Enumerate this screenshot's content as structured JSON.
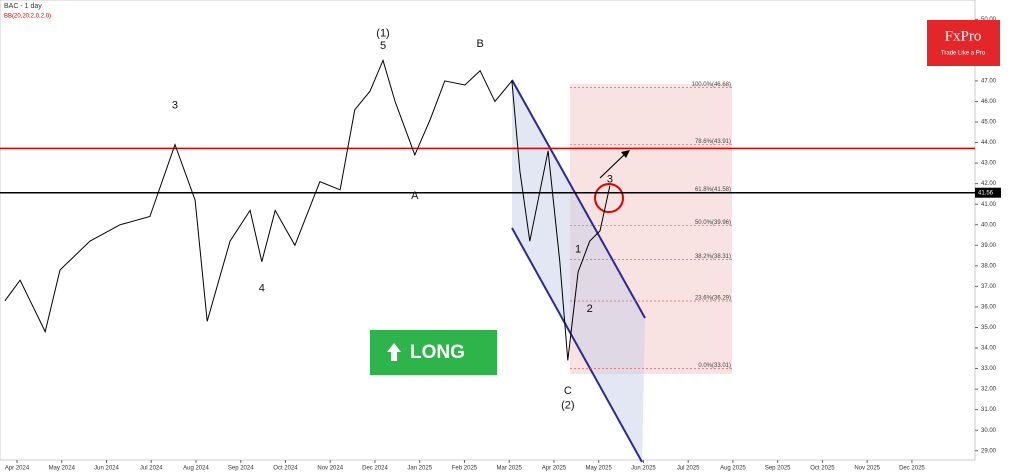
{
  "chart_data": {
    "type": "line",
    "title": "BAC - 1 day",
    "indicator": "BB(20,20,2,0,2.0)",
    "xlim": [
      -0.38,
      21.41
    ],
    "ylim": [
      28.55,
      50.55
    ],
    "xticks": [
      {
        "value": 0,
        "label": "Apr 2024"
      },
      {
        "value": 1,
        "label": "May 2024"
      },
      {
        "value": 2,
        "label": "Jun 2024"
      },
      {
        "value": 3,
        "label": "Jul 2024"
      },
      {
        "value": 4,
        "label": "Aug 2024"
      },
      {
        "value": 5,
        "label": "Sep 2024"
      },
      {
        "value": 6,
        "label": "Oct 2024"
      },
      {
        "value": 7,
        "label": "Nov 2024"
      },
      {
        "value": 8,
        "label": "Dec 2024"
      },
      {
        "value": 9,
        "label": "Jan 2025"
      },
      {
        "value": 10,
        "label": "Feb 2025"
      },
      {
        "value": 11,
        "label": "Mar 2025"
      },
      {
        "value": 12,
        "label": "Apr 2025"
      },
      {
        "value": 13,
        "label": "May 2025"
      },
      {
        "value": 14,
        "label": "Jun 2025"
      },
      {
        "value": 15,
        "label": "Jul 2025"
      },
      {
        "value": 16,
        "label": "Aug 2025"
      },
      {
        "value": 17,
        "label": "Sep 2025"
      },
      {
        "value": 18,
        "label": "Oct 2025"
      },
      {
        "value": 19,
        "label": "Nov 2025"
      },
      {
        "value": 20,
        "label": "Dec 2025"
      }
    ],
    "yticks": [
      {
        "value": 29,
        "label": "29.00"
      },
      {
        "value": 30,
        "label": "30.00"
      },
      {
        "value": 31,
        "label": "31.00"
      },
      {
        "value": 32,
        "label": "32.00"
      },
      {
        "value": 33,
        "label": "33.00"
      },
      {
        "value": 34,
        "label": "34.00"
      },
      {
        "value": 35,
        "label": "35.00"
      },
      {
        "value": 36,
        "label": "36.00"
      },
      {
        "value": 37,
        "label": "37.00"
      },
      {
        "value": 38,
        "label": "38.00"
      },
      {
        "value": 39,
        "label": "39.00"
      },
      {
        "value": 40,
        "label": "40.00"
      },
      {
        "value": 41,
        "label": "41.00"
      },
      {
        "value": 42,
        "label": "42.00"
      },
      {
        "value": 43,
        "label": "43.00"
      },
      {
        "value": 44,
        "label": "44.00"
      },
      {
        "value": 45,
        "label": "45.00"
      },
      {
        "value": 46,
        "label": "46.00"
      },
      {
        "value": 47,
        "label": "47.00"
      },
      {
        "value": 48,
        "label": "48.00"
      },
      {
        "value": 49,
        "label": "49.00"
      },
      {
        "value": 50,
        "label": "50.00"
      }
    ],
    "series": [
      {
        "color": "#000000",
        "x": [
          -0.27,
          0.07,
          0.63,
          0.96,
          1.63,
          2.3,
          2.97,
          3.53,
          3.98,
          4.25,
          4.76,
          5.21,
          5.47,
          5.77,
          6.21,
          6.77,
          7.22,
          7.55,
          7.89,
          8.18,
          8.45,
          8.89,
          9.23,
          9.56,
          10.01,
          10.35,
          10.68,
          11.06,
          11.24,
          11.46,
          11.87,
          12.13,
          12.31,
          12.54,
          12.8,
          13.03,
          13.25
        ],
        "values": [
          36.3,
          37.3,
          34.8,
          37.8,
          39.2,
          40.0,
          40.4,
          43.9,
          41.2,
          35.3,
          39.2,
          40.7,
          38.2,
          40.7,
          39.0,
          42.1,
          41.7,
          45.6,
          46.5,
          48.0,
          46.0,
          43.4,
          45.1,
          47.0,
          46.8,
          47.5,
          46.0,
          47.0,
          42.6,
          39.2,
          43.6,
          38.2,
          33.4,
          37.7,
          39.2,
          39.7,
          41.9
        ]
      }
    ],
    "levels": [
      {
        "value": 43.72,
        "color": "#e00000"
      },
      {
        "value": 41.56,
        "label": "41.56",
        "color": "#000000"
      }
    ],
    "fibonacci": [
      {
        "value": 46.68,
        "label": "100.0%(46.68)"
      },
      {
        "value": 43.91,
        "label": "78.6%(43.91)"
      },
      {
        "value": 41.58,
        "label": "61.8%(41.58)"
      },
      {
        "value": 39.96,
        "label": "50.0%(39.96)"
      },
      {
        "value": 38.31,
        "label": "38.2%(38.31)"
      },
      {
        "value": 36.29,
        "label": "23.6%(36.29)"
      },
      {
        "value": 33.01,
        "label": "0.0%(33.01)"
      }
    ],
    "annotations": [
      {
        "text": "(1)",
        "x": 8.18,
        "y": 49.3
      },
      {
        "text": "5",
        "x": 8.18,
        "y": 48.7
      },
      {
        "text": "3",
        "x": 3.53,
        "y": 45.8
      },
      {
        "text": "4",
        "x": 5.47,
        "y": 36.9
      },
      {
        "text": "A",
        "x": 8.89,
        "y": 41.4
      },
      {
        "text": "B",
        "x": 10.35,
        "y": 48.8
      },
      {
        "text": "C",
        "x": 12.31,
        "y": 31.9
      },
      {
        "text": "(2)",
        "x": 12.31,
        "y": 31.2
      },
      {
        "text": "1",
        "x": 12.54,
        "y": 38.8
      },
      {
        "text": "2",
        "x": 12.8,
        "y": 35.9
      },
      {
        "text": "3",
        "x": 13.25,
        "y": 42.2
      }
    ],
    "signal": "LONG",
    "brand": "FxPro",
    "slogan": "Trade Like a Pro"
  }
}
